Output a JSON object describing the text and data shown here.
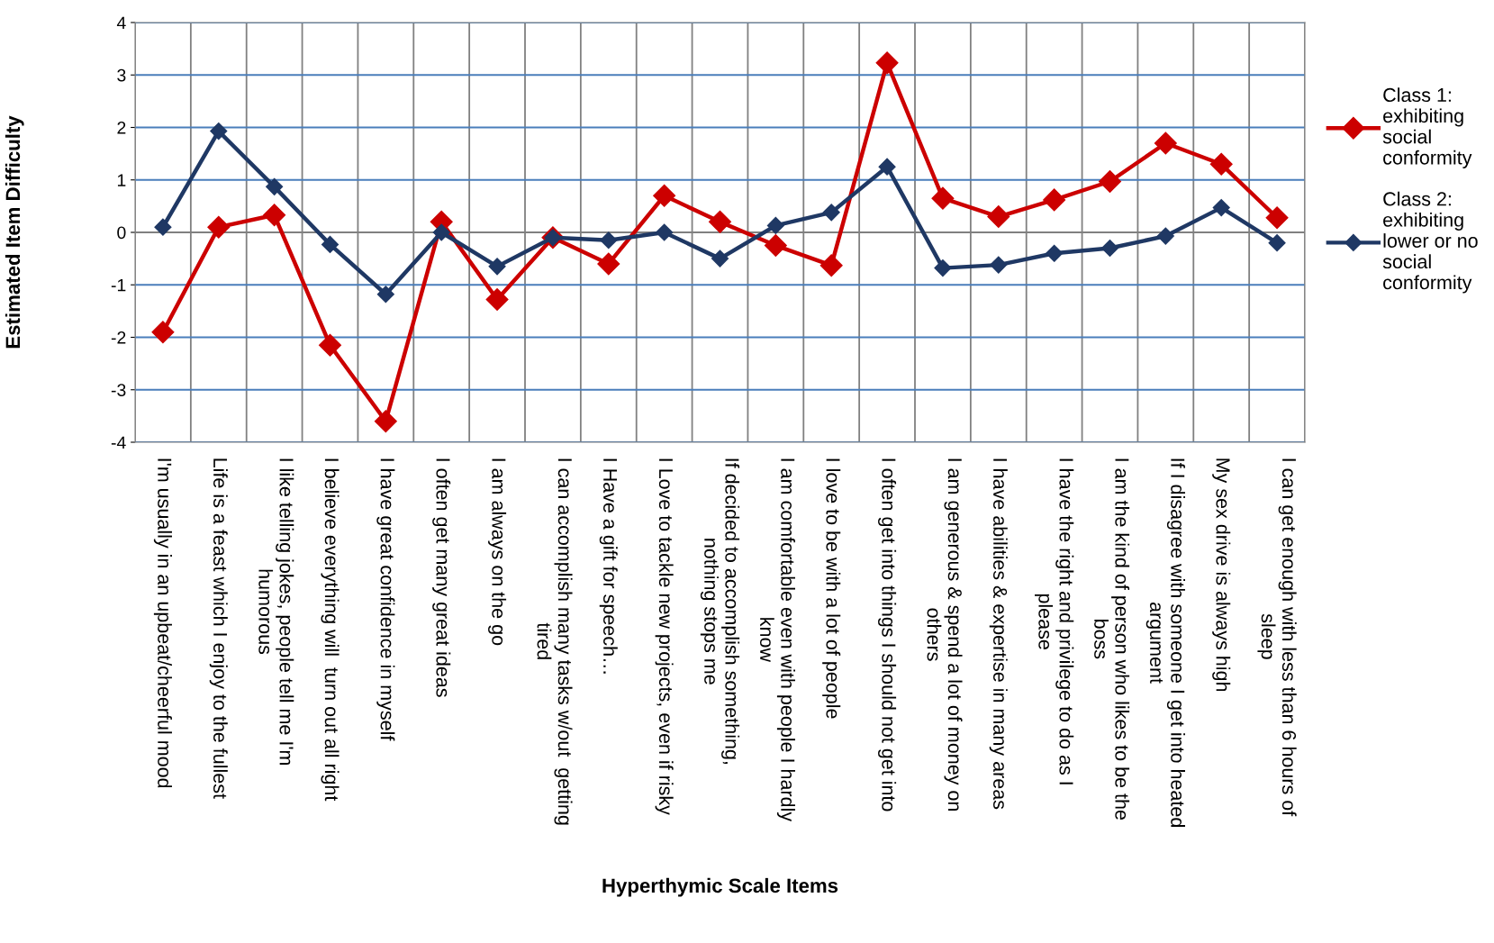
{
  "chart_data": {
    "type": "line",
    "xlabel": "Hyperthymic Scale Items",
    "ylabel": "Estimated Item Difficulty",
    "categories": [
      "I'm usually in an upbeat/cheerful mood",
      "Life is a feast which I enjoy to the fullest",
      "I like telling jokes, people tell me I'm\nhumorous",
      "I believe everything will  turn out all right",
      "I have great confidence in myself",
      "I often get many great ideas",
      "I am always on the go",
      "I can accomplish many tasks w/out  getting\ntired",
      "I Have a gift for speech…",
      "I Love to tackle new projects, even if risky",
      "If decided to accomplish something,\nnothing stops me",
      "I am comfortable even with people I hardly\nknow",
      "I love to be with a lot of people",
      "I often get into things I should not get into",
      "I am generous & spend a lot of money on\nothers",
      "I have abilities & expertise in many areas",
      "I have the right and privilege to do as I\nplease",
      "I am the kind of person who likes to be the\nboss",
      "If I disagree with someone I get into heated\nargument",
      "My sex drive is always high",
      "I can get enough with less than 6 hours of\nsleep"
    ],
    "series": [
      {
        "name": "Class 1:\nexhibiting\nsocial\nconformity",
        "color": "#cc0000",
        "values": [
          -1.9,
          0.1,
          0.33,
          -2.15,
          -3.6,
          0.2,
          -1.28,
          -0.1,
          -0.6,
          0.7,
          0.2,
          -0.25,
          -0.63,
          3.23,
          0.65,
          0.3,
          0.62,
          0.97,
          1.7,
          1.3,
          0.28
        ]
      },
      {
        "name": "Class 2:\nexhibiting\nlower or no\nsocial\nconformity",
        "color": "#1f3864",
        "values": [
          0.1,
          1.93,
          0.87,
          -0.23,
          -1.18,
          0.0,
          -0.65,
          -0.1,
          -0.15,
          0.0,
          -0.5,
          0.13,
          0.38,
          1.25,
          -0.68,
          -0.62,
          -0.4,
          -0.3,
          -0.07,
          0.47,
          -0.2
        ]
      }
    ],
    "ylim": [
      -4,
      4
    ],
    "yticks": [
      -4,
      -3,
      -2,
      -1,
      0,
      1,
      2,
      3,
      4
    ],
    "grid": true,
    "legend": "right",
    "marker": "diamond",
    "line_style": "solid"
  }
}
